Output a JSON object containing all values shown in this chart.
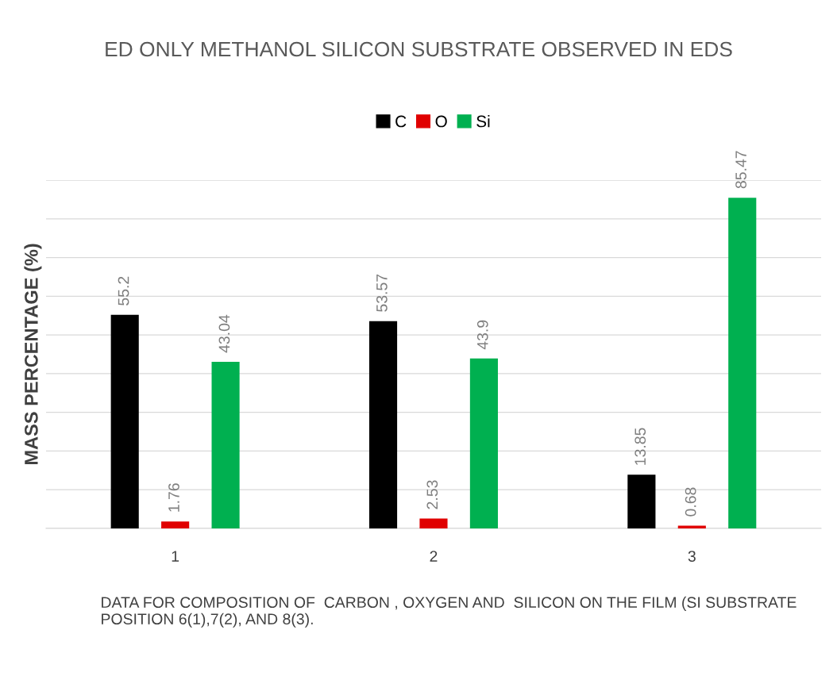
{
  "chart_data": {
    "type": "bar",
    "title": "ED ONLY METHANOL SILICON SUBSTRATE OBSERVED IN EDS",
    "xlabel": "DATA FOR COMPOSITION OF  CARBON , OXYGEN AND  SILICON ON THE FILM (SI SUBSTRATE POSITION 6(1),7(2), AND 8(3).",
    "ylabel": "MASS PERCENTAGE (%)",
    "categories": [
      "1",
      "2",
      "3"
    ],
    "series": [
      {
        "name": "C",
        "color": "#000000",
        "values": [
          55.2,
          53.57,
          13.85
        ]
      },
      {
        "name": "O",
        "color": "#e00000",
        "values": [
          1.76,
          2.53,
          0.68
        ]
      },
      {
        "name": "Si",
        "color": "#00b050",
        "values": [
          43.04,
          43.9,
          85.47
        ]
      }
    ],
    "ylim": [
      0,
      90
    ],
    "yticks": [
      {
        "value": 0,
        "label": null
      },
      {
        "value": 10,
        "label": null
      },
      {
        "value": 20,
        "label": null
      },
      {
        "value": 30,
        "label": null
      },
      {
        "value": 40,
        "label": null
      },
      {
        "value": 50,
        "label": null
      },
      {
        "value": 60,
        "label": null
      },
      {
        "value": 70,
        "label": null
      },
      {
        "value": 80,
        "label": null
      },
      {
        "value": 90,
        "label": null
      }
    ],
    "tick_labels": "x",
    "grid": "y",
    "legend": "top",
    "data_labels": true
  }
}
